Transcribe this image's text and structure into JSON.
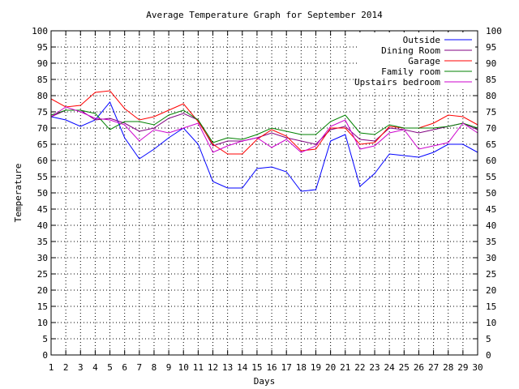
{
  "chart_data": {
    "type": "line",
    "title": "Average Temperature Graph for September 2014",
    "xlabel": "Days",
    "ylabel": "Temperature",
    "xlim": [
      1,
      30
    ],
    "ylim": [
      0,
      100
    ],
    "ystep": 5,
    "grid": true,
    "legend_position": "top-right",
    "x": [
      1,
      2,
      3,
      4,
      5,
      6,
      7,
      8,
      9,
      10,
      11,
      12,
      13,
      14,
      15,
      16,
      17,
      18,
      19,
      20,
      21,
      22,
      23,
      24,
      25,
      26,
      27,
      28,
      29,
      30
    ],
    "series": [
      {
        "name": "Outside",
        "color": "#0000ff",
        "values": [
          73.5,
          72.5,
          70.5,
          72.5,
          78,
          67,
          60.5,
          63.5,
          67,
          70,
          65,
          53.5,
          51.5,
          51.5,
          57.5,
          58,
          56.5,
          50.5,
          51,
          66,
          68,
          52,
          56,
          62,
          61.5,
          61,
          62.5,
          65,
          65,
          62.5
        ]
      },
      {
        "name": "Dining Room",
        "color": "#800080",
        "values": [
          73.5,
          75.5,
          75.5,
          72.5,
          73,
          71.5,
          69,
          70,
          73,
          74.5,
          72.5,
          64.5,
          66,
          66,
          67,
          68.5,
          67,
          66,
          65,
          69.5,
          70.5,
          66.5,
          66,
          70,
          69.5,
          68.5,
          69.5,
          70.5,
          71.5,
          69.5
        ]
      },
      {
        "name": "Garage",
        "color": "#ff0000",
        "values": [
          79,
          76.5,
          77,
          81,
          81.5,
          76,
          72.5,
          73.5,
          75.5,
          77.5,
          72,
          65,
          62,
          62,
          66.5,
          69.5,
          67.5,
          63,
          63.5,
          70,
          70,
          65,
          65.5,
          70.5,
          70,
          70,
          71.5,
          74,
          73.5,
          71
        ]
      },
      {
        "name": "Family room",
        "color": "#008000",
        "values": [
          74,
          75.5,
          75.5,
          74.5,
          69.5,
          72,
          72,
          71,
          74,
          75.5,
          72.5,
          65.5,
          67,
          66.5,
          68,
          70,
          69,
          68,
          68,
          72,
          74,
          68.5,
          68,
          71,
          70,
          70,
          70,
          70.5,
          71.5,
          70
        ]
      },
      {
        "name": "Upstairs bedroom",
        "color": "#cc00cc",
        "values": [
          73.5,
          76.5,
          75,
          73,
          72.5,
          71,
          66,
          69.5,
          68.5,
          70,
          71.5,
          62.5,
          64.5,
          66,
          67,
          64,
          66.5,
          62.5,
          64.5,
          70.5,
          72.5,
          63.5,
          64.5,
          68.5,
          69.5,
          63.5,
          64.5,
          65.5,
          71.5,
          68.5
        ]
      }
    ]
  }
}
